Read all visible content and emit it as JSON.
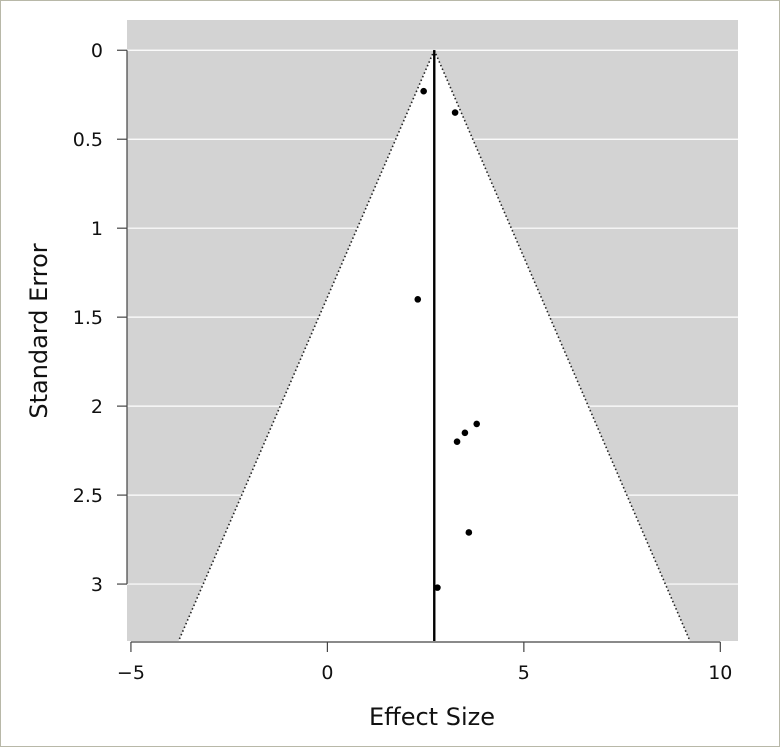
{
  "chart_data": {
    "type": "scatter",
    "title": "",
    "xlabel": "Effect Size",
    "ylabel": "Standard Error",
    "xlim": [
      -5.1,
      10.45
    ],
    "ylim": [
      3.32,
      -0.17
    ],
    "y_reversed": true,
    "grid": true,
    "x_ticks": [
      -5,
      0,
      5,
      10
    ],
    "x_tick_labels": [
      "−5",
      "0",
      "5",
      "10"
    ],
    "y_ticks": [
      0,
      0.5,
      1,
      1.5,
      2,
      2.5,
      3
    ],
    "y_tick_labels": [
      "0",
      "0.5",
      "1",
      "1.5",
      "2",
      "2.5",
      "3"
    ],
    "summary_effect": 2.72,
    "funnel_z": 1.96,
    "colors": {
      "panel_background": "#d3d3d3",
      "funnel_fill": "#ffffff",
      "gridline": "#ffffff",
      "points": "#000000",
      "reference_line": "#000000"
    },
    "points": [
      {
        "x": 2.45,
        "y": 0.23
      },
      {
        "x": 3.25,
        "y": 0.35
      },
      {
        "x": 2.3,
        "y": 1.4
      },
      {
        "x": 3.8,
        "y": 2.1
      },
      {
        "x": 3.5,
        "y": 2.15
      },
      {
        "x": 3.3,
        "y": 2.2
      },
      {
        "x": 3.6,
        "y": 2.71
      },
      {
        "x": 2.8,
        "y": 3.02
      }
    ]
  }
}
